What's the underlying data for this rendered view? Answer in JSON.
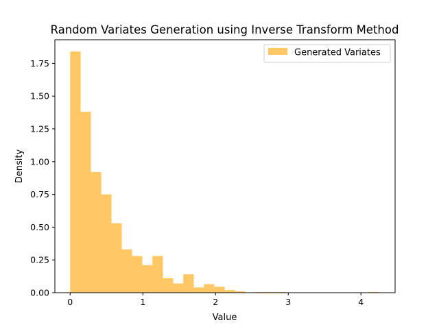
{
  "chart_data": {
    "type": "bar",
    "title": "Random Variates Generation using Inverse Transform Method",
    "xlabel": "Value",
    "ylabel": "Density",
    "xlim": [
      -0.21,
      4.47
    ],
    "ylim": [
      0,
      1.93
    ],
    "xticks": [
      0,
      1,
      2,
      3,
      4
    ],
    "yticks": [
      0.0,
      0.25,
      0.5,
      0.75,
      1.0,
      1.25,
      1.5,
      1.75
    ],
    "ytick_labels": [
      "0.00",
      "0.25",
      "0.50",
      "0.75",
      "1.00",
      "1.25",
      "1.50",
      "1.75"
    ],
    "legend_position": "top-right",
    "grid": false,
    "series": [
      {
        "name": "Generated Variates",
        "color": "#ffc864",
        "bin_start": 0.0,
        "bin_width": 0.1415,
        "values": [
          1.84,
          1.38,
          0.92,
          0.75,
          0.53,
          0.33,
          0.28,
          0.21,
          0.28,
          0.11,
          0.07,
          0.14,
          0.04,
          0.065,
          0.045,
          0.02,
          0.01,
          0,
          0.005,
          0.005,
          0.005,
          0,
          0,
          0,
          0,
          0,
          0,
          0,
          0,
          0.005
        ]
      }
    ]
  }
}
